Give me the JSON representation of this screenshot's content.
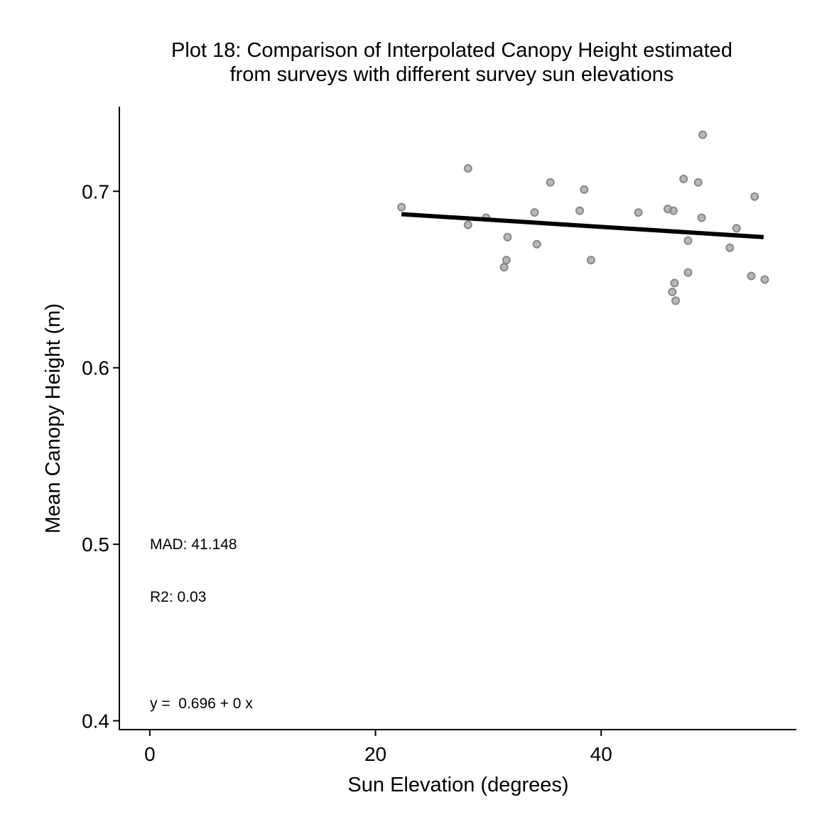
{
  "chart_data": {
    "type": "scatter",
    "title": "Plot 18: Comparison of Interpolated Canopy Height estimated\nfrom surveys with different survey sun elevations",
    "xlabel": "Sun Elevation (degrees)",
    "ylabel": "Mean Canopy Height (m)",
    "xlim": [
      -2.7,
      57.3
    ],
    "ylim": [
      0.395,
      0.748
    ],
    "x_ticks": [
      0,
      20,
      40
    ],
    "y_ticks": [
      0.4,
      0.5,
      0.6,
      0.7
    ],
    "x_tick_labels": [
      "0",
      "20",
      "40"
    ],
    "y_tick_labels": [
      "0.4",
      "0.5",
      "0.6",
      "0.7"
    ],
    "grid": false,
    "point_color": "#888888",
    "line_color": "#000000",
    "points": [
      {
        "x": 22.3,
        "y": 0.691
      },
      {
        "x": 28.2,
        "y": 0.713
      },
      {
        "x": 28.2,
        "y": 0.681
      },
      {
        "x": 29.8,
        "y": 0.685
      },
      {
        "x": 31.4,
        "y": 0.657
      },
      {
        "x": 31.6,
        "y": 0.661
      },
      {
        "x": 31.7,
        "y": 0.674
      },
      {
        "x": 34.1,
        "y": 0.688
      },
      {
        "x": 34.3,
        "y": 0.67
      },
      {
        "x": 35.5,
        "y": 0.705
      },
      {
        "x": 38.1,
        "y": 0.689
      },
      {
        "x": 38.5,
        "y": 0.701
      },
      {
        "x": 39.1,
        "y": 0.661
      },
      {
        "x": 43.3,
        "y": 0.688
      },
      {
        "x": 45.9,
        "y": 0.69
      },
      {
        "x": 46.4,
        "y": 0.689
      },
      {
        "x": 46.3,
        "y": 0.643
      },
      {
        "x": 46.5,
        "y": 0.648
      },
      {
        "x": 46.6,
        "y": 0.638
      },
      {
        "x": 47.3,
        "y": 0.707
      },
      {
        "x": 47.7,
        "y": 0.672
      },
      {
        "x": 47.7,
        "y": 0.654
      },
      {
        "x": 48.6,
        "y": 0.705
      },
      {
        "x": 48.9,
        "y": 0.685
      },
      {
        "x": 49.0,
        "y": 0.732
      },
      {
        "x": 51.4,
        "y": 0.668
      },
      {
        "x": 52.0,
        "y": 0.679
      },
      {
        "x": 53.3,
        "y": 0.652
      },
      {
        "x": 53.6,
        "y": 0.697
      },
      {
        "x": 54.5,
        "y": 0.65
      }
    ],
    "fit_line": {
      "x": [
        22.3,
        54.4
      ],
      "y": [
        0.687,
        0.674
      ]
    },
    "annotations": [
      "MAD: 41.148",
      "R2: 0.03",
      "y =  0.696 + 0 x"
    ]
  }
}
